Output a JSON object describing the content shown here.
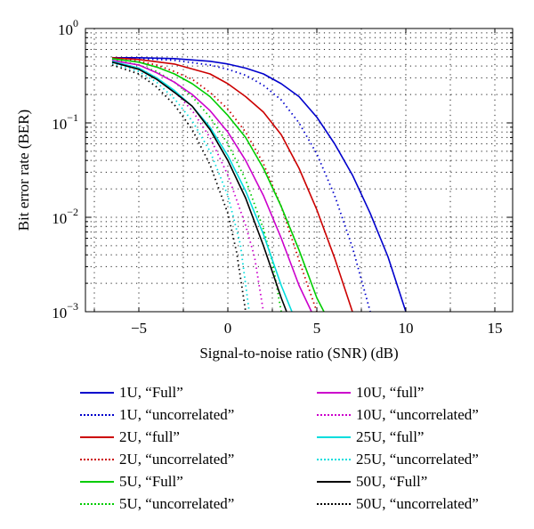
{
  "chart_data": {
    "type": "line",
    "title": "",
    "xlabel": "Signal-to-noise ratio (SNR) (dB)",
    "ylabel": "Bit error rate (BER)",
    "xlim": [
      -8,
      16
    ],
    "ylim": [
      0.001,
      1
    ],
    "yscale": "log",
    "grid": true,
    "xticks": [
      -5,
      0,
      5,
      10,
      15
    ],
    "xtick_labels": [
      "−5",
      "0",
      "5",
      "10",
      "15"
    ],
    "yticks": [
      0.001,
      0.01,
      0.1,
      1
    ],
    "ytick_labels": [
      {
        "base": "10",
        "exp": "−3"
      },
      {
        "base": "10",
        "exp": "−2"
      },
      {
        "base": "10",
        "exp": "−1"
      },
      {
        "base": "10",
        "exp": "0"
      }
    ],
    "legend_position": "bottom, two columns",
    "series": [
      {
        "name": "1U, “Full”",
        "color": "#0000cc",
        "style": "solid",
        "x": [
          -6.5,
          -5,
          -3,
          -1,
          0,
          1,
          2,
          3,
          4,
          5,
          6,
          7,
          8,
          9,
          10
        ],
        "y": [
          0.49,
          0.49,
          0.48,
          0.45,
          0.42,
          0.38,
          0.33,
          0.26,
          0.19,
          0.115,
          0.06,
          0.028,
          0.011,
          0.0038,
          0.001
        ]
      },
      {
        "name": "1U, “uncorrelated”",
        "color": "#0000cc",
        "style": "dotted",
        "x": [
          -6.5,
          -5,
          -3,
          -1,
          0,
          1,
          2,
          3,
          4,
          5,
          6,
          7,
          8
        ],
        "y": [
          0.49,
          0.48,
          0.46,
          0.41,
          0.37,
          0.32,
          0.25,
          0.175,
          0.1,
          0.047,
          0.017,
          0.0048,
          0.001
        ]
      },
      {
        "name": "2U, “full”",
        "color": "#cc0000",
        "style": "solid",
        "x": [
          -6.5,
          -5,
          -3,
          -1,
          0,
          1,
          2,
          3,
          4,
          5,
          6,
          7
        ],
        "y": [
          0.49,
          0.47,
          0.42,
          0.33,
          0.26,
          0.19,
          0.13,
          0.075,
          0.033,
          0.012,
          0.0037,
          0.001
        ]
      },
      {
        "name": "2U, “uncorrelated”",
        "color": "#cc0000",
        "style": "dotted",
        "x": [
          -6.5,
          -5,
          -4,
          -3,
          -2,
          -1,
          0,
          1,
          2,
          3,
          4,
          5
        ],
        "y": [
          0.48,
          0.45,
          0.41,
          0.35,
          0.29,
          0.21,
          0.14,
          0.08,
          0.037,
          0.013,
          0.0035,
          0.001
        ]
      },
      {
        "name": "5U, “Full”",
        "color": "#00cc00",
        "style": "solid",
        "x": [
          -6.5,
          -5,
          -4,
          -3,
          -2,
          -1,
          0,
          1,
          2,
          3,
          4,
          5,
          5.4
        ],
        "y": [
          0.48,
          0.44,
          0.39,
          0.33,
          0.26,
          0.19,
          0.12,
          0.07,
          0.033,
          0.013,
          0.0045,
          0.0014,
          0.001
        ]
      },
      {
        "name": "5U, “uncorrelated”",
        "color": "#00cc00",
        "style": "dotted",
        "x": [
          -6.5,
          -5,
          -4,
          -3,
          -2,
          -1,
          0,
          1,
          2,
          2.5,
          3
        ],
        "y": [
          0.47,
          0.41,
          0.35,
          0.27,
          0.19,
          0.115,
          0.06,
          0.025,
          0.0075,
          0.0034,
          0.001
        ]
      },
      {
        "name": "10U, “full”",
        "color": "#cc00cc",
        "style": "solid",
        "x": [
          -6.5,
          -5,
          -4,
          -3,
          -2,
          -1,
          0,
          1,
          2,
          3,
          4,
          4.7
        ],
        "y": [
          0.46,
          0.41,
          0.34,
          0.27,
          0.2,
          0.135,
          0.08,
          0.04,
          0.017,
          0.006,
          0.0019,
          0.001
        ]
      },
      {
        "name": "10U, “uncorrelated”",
        "color": "#cc00cc",
        "style": "dotted",
        "x": [
          -6.5,
          -5,
          -4,
          -3,
          -2,
          -1,
          0,
          1,
          1.5,
          2
        ],
        "y": [
          0.45,
          0.38,
          0.3,
          0.215,
          0.135,
          0.07,
          0.028,
          0.0082,
          0.0038,
          0.001
        ]
      },
      {
        "name": "25U, “full”",
        "color": "#00dddd",
        "style": "solid",
        "x": [
          -6.5,
          -5,
          -4,
          -3,
          -2,
          -1,
          0,
          1,
          2,
          3,
          3.6
        ],
        "y": [
          0.45,
          0.38,
          0.3,
          0.22,
          0.15,
          0.09,
          0.045,
          0.019,
          0.0066,
          0.0019,
          0.001
        ]
      },
      {
        "name": "25U, “uncorrelated”",
        "color": "#00dddd",
        "style": "dotted",
        "x": [
          -6.5,
          -5,
          -4,
          -3,
          -2,
          -1,
          0,
          0.7,
          1.2
        ],
        "y": [
          0.43,
          0.35,
          0.27,
          0.18,
          0.105,
          0.05,
          0.017,
          0.0052,
          0.001
        ]
      },
      {
        "name": "50U, “Full”",
        "color": "#000000",
        "style": "solid",
        "x": [
          -6.5,
          -5,
          -4,
          -3,
          -2,
          -1,
          0,
          1,
          2,
          3,
          3.3
        ],
        "y": [
          0.44,
          0.37,
          0.29,
          0.21,
          0.15,
          0.085,
          0.04,
          0.016,
          0.005,
          0.0014,
          0.001
        ]
      },
      {
        "name": "50U, “uncorrelated”",
        "color": "#000000",
        "style": "dotted",
        "x": [
          -6.5,
          -5,
          -4,
          -3,
          -2,
          -1,
          0,
          0.5,
          1
        ],
        "y": [
          0.41,
          0.33,
          0.24,
          0.155,
          0.085,
          0.036,
          0.011,
          0.0042,
          0.001
        ]
      }
    ]
  }
}
